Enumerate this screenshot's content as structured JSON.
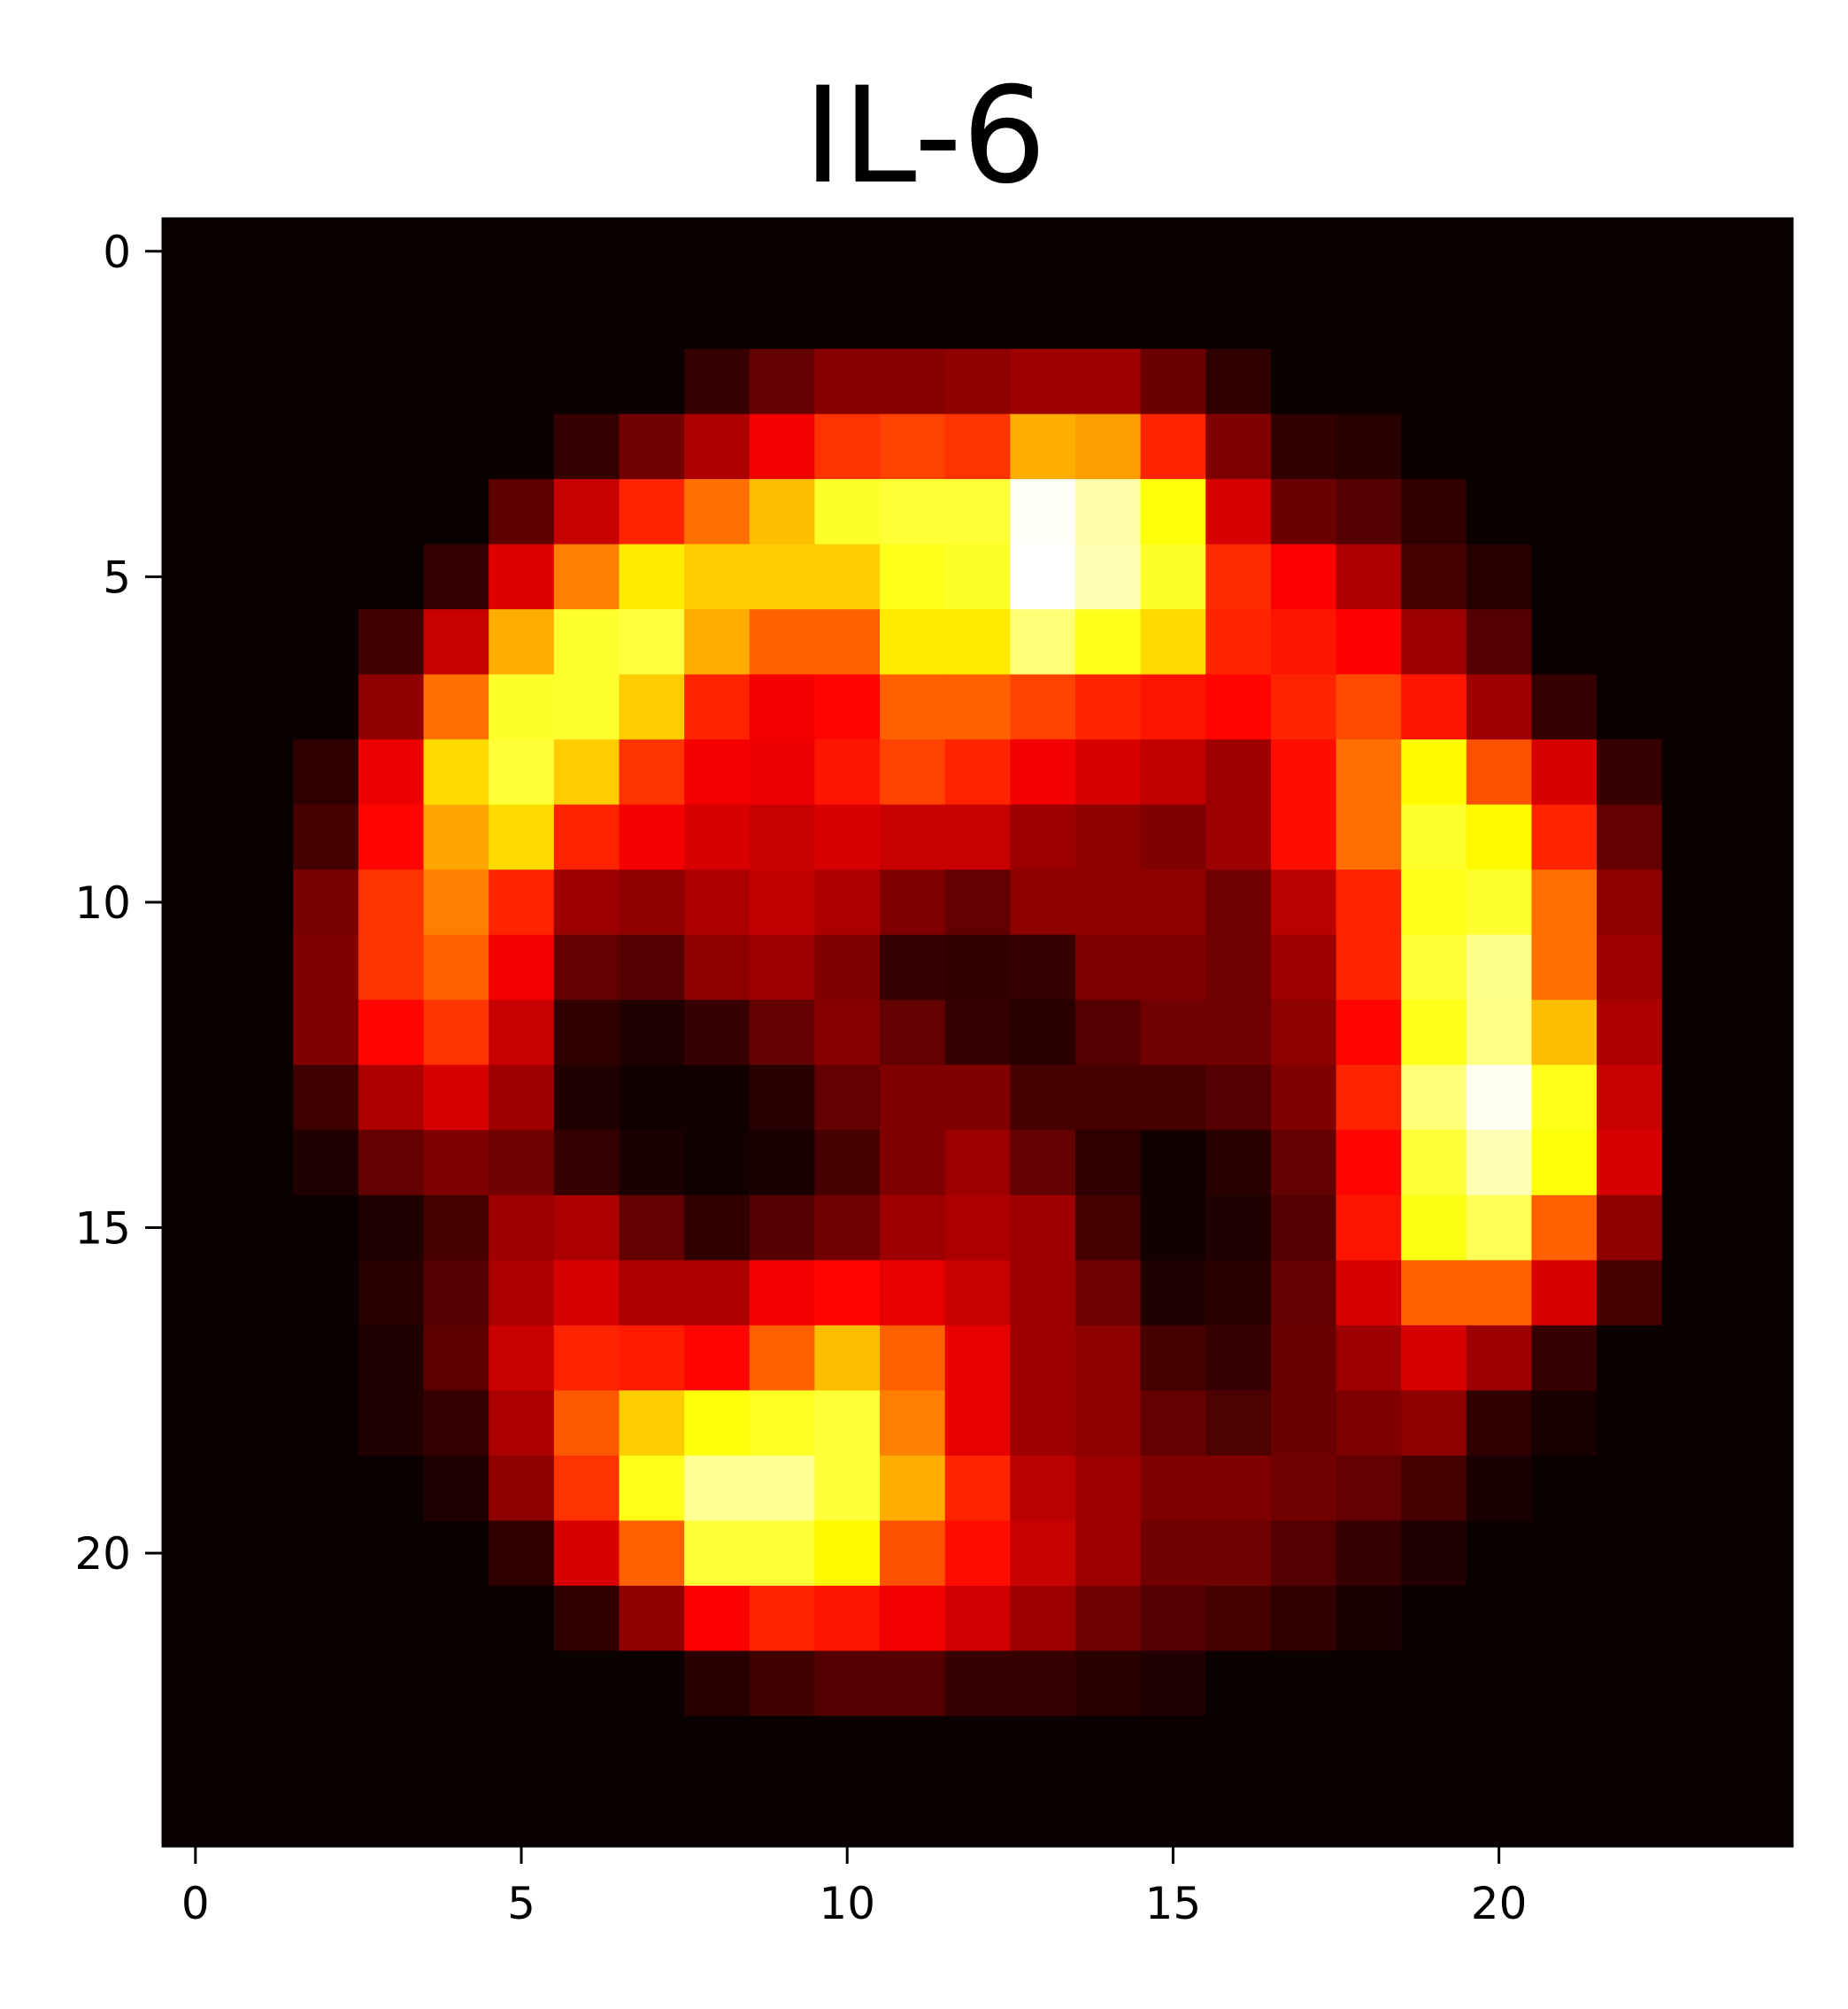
{
  "chart_data": {
    "type": "heatmap",
    "title": "IL-6",
    "xlabel": "",
    "ylabel": "",
    "colormap": "hot",
    "colormap_stops": [
      "#0b0000",
      "#ff0000",
      "#ffff00",
      "#ffffff"
    ],
    "xlim": [
      -0.5,
      24.5
    ],
    "ylim": [
      24.5,
      -0.5
    ],
    "x_ticks": [
      0,
      5,
      10,
      15,
      20
    ],
    "y_ticks": [
      0,
      5,
      10,
      15,
      20
    ],
    "x_tick_labels": [
      "0",
      "5",
      "10",
      "15",
      "20"
    ],
    "y_tick_labels": [
      "0",
      "5",
      "10",
      "15",
      "20"
    ],
    "grid": false,
    "values": [
      [
        0,
        0,
        0,
        0,
        0,
        0,
        0,
        0,
        0,
        0,
        0,
        0,
        0,
        0,
        0,
        0,
        0,
        0,
        0,
        0,
        0,
        0,
        0,
        0,
        0
      ],
      [
        0,
        0,
        0,
        0,
        0,
        0,
        0,
        0,
        0,
        0,
        0,
        0,
        0,
        0,
        0,
        0,
        0,
        0,
        0,
        0,
        0,
        0,
        0,
        0,
        0
      ],
      [
        0,
        0,
        0,
        0,
        0,
        0,
        0,
        0,
        0.06,
        0.12,
        0.17,
        0.17,
        0.18,
        0.2,
        0.2,
        0.13,
        0.05,
        0,
        0,
        0,
        0,
        0,
        0,
        0,
        0
      ],
      [
        0,
        0,
        0,
        0,
        0,
        0,
        0.06,
        0.14,
        0.22,
        0.32,
        0.4,
        0.42,
        0.4,
        0.56,
        0.54,
        0.38,
        0.16,
        0.05,
        0.04,
        0,
        0,
        0,
        0,
        0,
        0
      ],
      [
        0,
        0,
        0,
        0,
        0,
        0.11,
        0.26,
        0.38,
        0.48,
        0.58,
        0.72,
        0.74,
        0.74,
        0.99,
        0.89,
        0.68,
        0.28,
        0.13,
        0.1,
        0.05,
        0,
        0,
        0,
        0,
        0
      ],
      [
        0,
        0,
        0,
        0,
        0.06,
        0.29,
        0.5,
        0.64,
        0.6,
        0.6,
        0.6,
        0.7,
        0.72,
        1.0,
        0.9,
        0.72,
        0.39,
        0.33,
        0.22,
        0.08,
        0.04,
        0,
        0,
        0,
        0
      ],
      [
        0,
        0,
        0,
        0.07,
        0.26,
        0.56,
        0.73,
        0.75,
        0.56,
        0.46,
        0.46,
        0.64,
        0.64,
        0.82,
        0.7,
        0.62,
        0.38,
        0.36,
        0.33,
        0.2,
        0.1,
        0,
        0,
        0,
        0
      ],
      [
        0,
        0,
        0,
        0.18,
        0.48,
        0.72,
        0.73,
        0.6,
        0.38,
        0.32,
        0.34,
        0.46,
        0.46,
        0.42,
        0.38,
        0.36,
        0.34,
        0.38,
        0.43,
        0.36,
        0.2,
        0.06,
        0,
        0,
        0
      ],
      [
        0,
        0,
        0.05,
        0.31,
        0.62,
        0.74,
        0.6,
        0.4,
        0.32,
        0.31,
        0.36,
        0.42,
        0.38,
        0.32,
        0.28,
        0.25,
        0.2,
        0.35,
        0.48,
        0.66,
        0.44,
        0.28,
        0.06,
        0,
        0
      ],
      [
        0,
        0,
        0.08,
        0.34,
        0.55,
        0.62,
        0.38,
        0.32,
        0.28,
        0.26,
        0.28,
        0.26,
        0.26,
        0.2,
        0.18,
        0.16,
        0.2,
        0.35,
        0.48,
        0.73,
        0.66,
        0.38,
        0.12,
        0,
        0
      ],
      [
        0,
        0,
        0.15,
        0.4,
        0.5,
        0.38,
        0.2,
        0.18,
        0.22,
        0.25,
        0.22,
        0.16,
        0.12,
        0.18,
        0.18,
        0.18,
        0.14,
        0.24,
        0.38,
        0.7,
        0.73,
        0.48,
        0.18,
        0,
        0
      ],
      [
        0,
        0,
        0.16,
        0.4,
        0.46,
        0.32,
        0.12,
        0.1,
        0.18,
        0.2,
        0.16,
        0.06,
        0.05,
        0.06,
        0.16,
        0.16,
        0.14,
        0.2,
        0.38,
        0.74,
        0.85,
        0.48,
        0.2,
        0,
        0
      ],
      [
        0,
        0,
        0.16,
        0.34,
        0.4,
        0.26,
        0.05,
        0.03,
        0.06,
        0.12,
        0.17,
        0.12,
        0.06,
        0.04,
        0.1,
        0.14,
        0.14,
        0.18,
        0.34,
        0.7,
        0.84,
        0.58,
        0.22,
        0,
        0
      ],
      [
        0,
        0,
        0.07,
        0.22,
        0.28,
        0.2,
        0.03,
        0.01,
        0.01,
        0.04,
        0.12,
        0.16,
        0.16,
        0.08,
        0.08,
        0.08,
        0.1,
        0.16,
        0.38,
        0.82,
        0.98,
        0.7,
        0.26,
        0,
        0
      ],
      [
        0,
        0,
        0.03,
        0.12,
        0.16,
        0.14,
        0.06,
        0.02,
        0.01,
        0.02,
        0.08,
        0.16,
        0.2,
        0.12,
        0.05,
        0.01,
        0.04,
        0.12,
        0.34,
        0.74,
        0.9,
        0.68,
        0.28,
        0,
        0
      ],
      [
        0,
        0,
        0,
        0.03,
        0.08,
        0.2,
        0.22,
        0.12,
        0.05,
        0.1,
        0.14,
        0.2,
        0.22,
        0.2,
        0.08,
        0.01,
        0.03,
        0.1,
        0.36,
        0.69,
        0.78,
        0.46,
        0.18,
        0,
        0
      ],
      [
        0,
        0,
        0,
        0.04,
        0.1,
        0.22,
        0.28,
        0.22,
        0.22,
        0.32,
        0.34,
        0.3,
        0.26,
        0.2,
        0.14,
        0.03,
        0.04,
        0.12,
        0.28,
        0.46,
        0.46,
        0.28,
        0.08,
        0,
        0
      ],
      [
        0,
        0,
        0,
        0.03,
        0.11,
        0.26,
        0.38,
        0.37,
        0.34,
        0.46,
        0.58,
        0.46,
        0.3,
        0.2,
        0.18,
        0.08,
        0.06,
        0.13,
        0.2,
        0.28,
        0.2,
        0.06,
        0,
        0,
        0
      ],
      [
        0,
        0,
        0,
        0.03,
        0.06,
        0.22,
        0.45,
        0.6,
        0.68,
        0.71,
        0.74,
        0.5,
        0.3,
        0.2,
        0.18,
        0.12,
        0.09,
        0.13,
        0.16,
        0.18,
        0.05,
        0.02,
        0,
        0,
        0
      ],
      [
        0,
        0,
        0,
        0,
        0.03,
        0.18,
        0.4,
        0.7,
        0.86,
        0.86,
        0.74,
        0.56,
        0.38,
        0.24,
        0.2,
        0.16,
        0.16,
        0.14,
        0.12,
        0.08,
        0.02,
        0,
        0,
        0,
        0
      ],
      [
        0,
        0,
        0,
        0,
        0,
        0.05,
        0.28,
        0.46,
        0.74,
        0.74,
        0.66,
        0.44,
        0.35,
        0.26,
        0.2,
        0.14,
        0.14,
        0.1,
        0.06,
        0.03,
        0,
        0,
        0,
        0,
        0
      ],
      [
        0,
        0,
        0,
        0,
        0,
        0,
        0.05,
        0.18,
        0.33,
        0.38,
        0.36,
        0.32,
        0.27,
        0.2,
        0.14,
        0.1,
        0.08,
        0.05,
        0.02,
        0,
        0,
        0,
        0,
        0,
        0
      ],
      [
        0,
        0,
        0,
        0,
        0,
        0,
        0,
        0,
        0.04,
        0.07,
        0.1,
        0.1,
        0.06,
        0.06,
        0.04,
        0.03,
        0,
        0,
        0,
        0,
        0,
        0,
        0,
        0,
        0
      ],
      [
        0,
        0,
        0,
        0,
        0,
        0,
        0,
        0,
        0,
        0,
        0,
        0,
        0,
        0,
        0,
        0,
        0,
        0,
        0,
        0,
        0,
        0,
        0,
        0,
        0
      ],
      [
        0,
        0,
        0,
        0,
        0,
        0,
        0,
        0,
        0,
        0,
        0,
        0,
        0,
        0,
        0,
        0,
        0,
        0,
        0,
        0,
        0,
        0,
        0,
        0,
        0
      ]
    ]
  }
}
